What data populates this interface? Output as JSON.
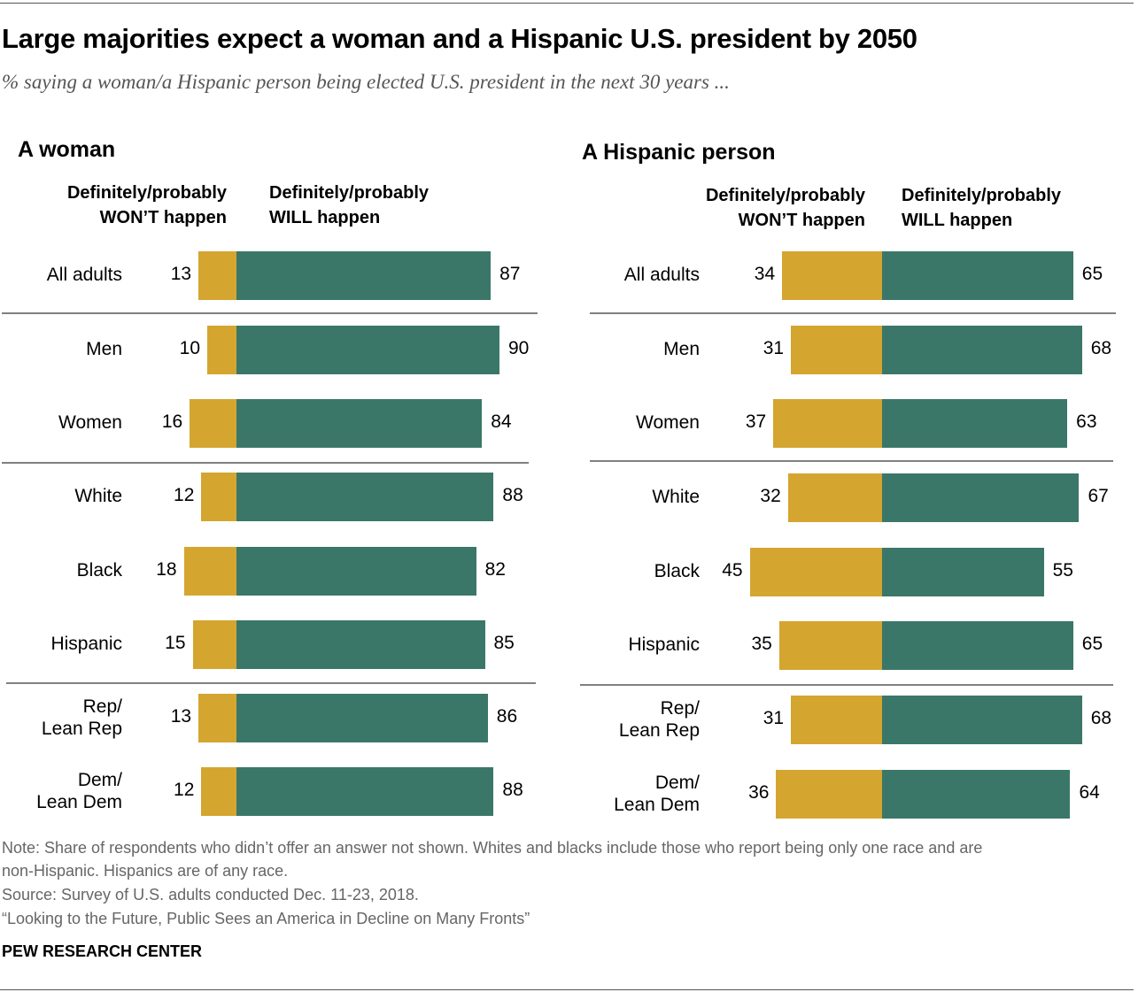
{
  "title": "Large majorities expect a woman and a Hispanic U.S. president by 2050",
  "subtitle": "% saying a woman/a Hispanic person being elected U.S. president in the next 30 years ...",
  "colors": {
    "wont": "#D4A52F",
    "will": "#3A7768"
  },
  "chart_data": [
    {
      "type": "bar",
      "orientation": "horizontal-diverging",
      "title": "A woman",
      "series_labels": {
        "wont": "Definitely/probably WON’T happen",
        "will": "Definitely/probably WILL happen"
      },
      "categories": [
        "All adults",
        "Men",
        "Women",
        "White",
        "Black",
        "Hispanic",
        "Rep/ Lean Rep",
        "Dem/ Lean Dem"
      ],
      "series": [
        {
          "name": "Definitely/probably WON’T happen",
          "values": [
            13,
            10,
            16,
            12,
            18,
            15,
            13,
            12
          ]
        },
        {
          "name": "Definitely/probably WILL happen",
          "values": [
            87,
            90,
            84,
            88,
            82,
            85,
            86,
            88
          ]
        }
      ]
    },
    {
      "type": "bar",
      "orientation": "horizontal-diverging",
      "title": "A Hispanic person",
      "series_labels": {
        "wont": "Definitely/probably WON’T happen",
        "will": "Definitely/probably WILL happen"
      },
      "categories": [
        "All adults",
        "Men",
        "Women",
        "White",
        "Black",
        "Hispanic",
        "Rep/ Lean Rep",
        "Dem/ Lean Dem"
      ],
      "series": [
        {
          "name": "Definitely/probably WON’T happen",
          "values": [
            34,
            31,
            37,
            32,
            45,
            35,
            31,
            36
          ]
        },
        {
          "name": "Definitely/probably WILL happen",
          "values": [
            65,
            68,
            63,
            67,
            55,
            65,
            68,
            64
          ]
        }
      ]
    }
  ],
  "notes": {
    "note1": "Note: Share of respondents who didn’t offer an answer not shown. Whites and blacks include those who report being only one race and are",
    "note2": "non-Hispanic. Hispanics are of any race.",
    "source": "Source: Survey of U.S. adults conducted Dec. 11-23, 2018.",
    "report": "“Looking to the Future, Public Sees an America in Decline on Many Fronts”",
    "brand": "PEW RESEARCH CENTER"
  }
}
